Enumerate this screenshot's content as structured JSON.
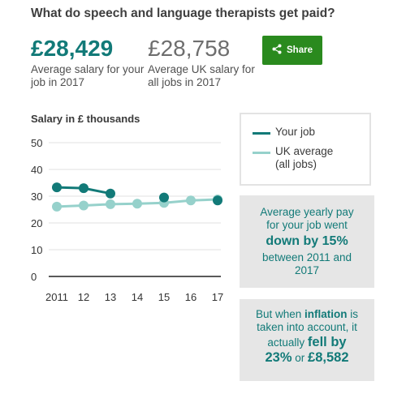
{
  "title": "What do speech and language therapists get paid?",
  "stats": {
    "your_job": {
      "value": "£28,429",
      "caption": "Average salary for your job in 2017"
    },
    "uk": {
      "value": "£28,758",
      "caption": "Average UK salary for all jobs in 2017"
    }
  },
  "share": {
    "label": "Share",
    "icon": "share-icon"
  },
  "chart_title": "Salary in £ thousands",
  "legend": {
    "yours": "Your job",
    "uk_line1": "UK average",
    "uk_line2": "(all jobs)"
  },
  "colors": {
    "your_job": "#127a78",
    "uk_average": "#96d1cb",
    "share_button": "#2a8a1e",
    "info_text": "#127a78",
    "info_bg": "#e6e6e6"
  },
  "info_box_1": {
    "line1": "Average yearly pay",
    "line2": "for your job went",
    "emphasis": "down by 15%",
    "line3": "between 2011 and",
    "line4": "2017"
  },
  "info_box_2": {
    "part1": "But when",
    "inflation": "inflation",
    "part2": "is",
    "line2": "taken into account, it",
    "part3": "actually",
    "fell_by": "fell by",
    "pct": "23%",
    "or": "or",
    "amount": "£8,582"
  },
  "chart_data": {
    "type": "line",
    "title": "Salary in £ thousands",
    "xlabel": "",
    "ylabel": "",
    "x_tick_labels": [
      "2011",
      "12",
      "13",
      "14",
      "15",
      "16",
      "17"
    ],
    "y_ticks": [
      0,
      10,
      20,
      30,
      40,
      50
    ],
    "ylim": [
      0,
      50
    ],
    "grid": true,
    "legend_position": "right",
    "series": [
      {
        "name": "Your job",
        "color": "#127a78",
        "segments": [
          [
            [
              2011,
              33.3
            ],
            [
              2012,
              33.0
            ],
            [
              2013,
              31.0
            ]
          ],
          [
            [
              2015,
              29.5
            ]
          ],
          [
            [
              2017,
              28.4
            ]
          ]
        ]
      },
      {
        "name": "UK average (all jobs)",
        "color": "#96d1cb",
        "segments": [
          [
            [
              2011,
              26.1
            ],
            [
              2012,
              26.5
            ],
            [
              2013,
              27.0
            ],
            [
              2014,
              27.2
            ],
            [
              2015,
              27.5
            ],
            [
              2016,
              28.4
            ],
            [
              2017,
              28.8
            ]
          ]
        ]
      }
    ]
  }
}
